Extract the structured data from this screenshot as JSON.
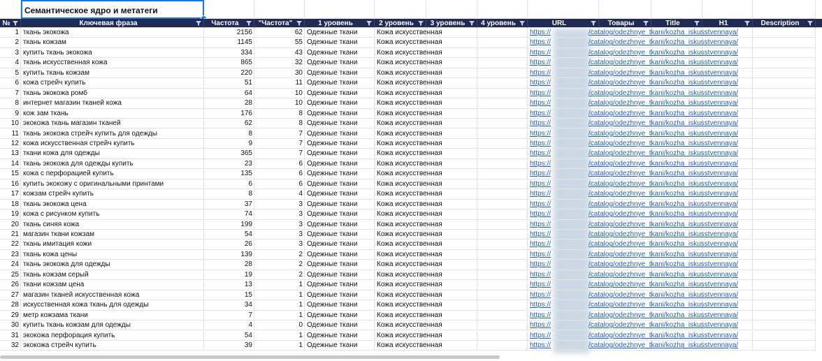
{
  "table": {
    "title": "Семантическое ядро и метатеги",
    "headers": [
      "№",
      "Ключевая фраза",
      "Частота",
      "\"Частота\"",
      "1 уровень",
      "2 уровень",
      "3 уровень",
      "4 уровень",
      "URL",
      "Товары",
      "Title",
      "H1",
      "Description"
    ],
    "rows": [
      [
        1,
        "ткань экокожа",
        2156,
        62,
        "Одежные ткани",
        "Кожа искусственная",
        "https://",
        "/catalog/odezhnye_tkani/kozha_iskusstvennaya/"
      ],
      [
        2,
        "ткань кожзам",
        1145,
        55,
        "Одежные ткани",
        "Кожа искусственная",
        "https://",
        "/catalog/odezhnye_tkani/kozha_iskusstvennaya/"
      ],
      [
        3,
        "купить ткань экокожа",
        334,
        43,
        "Одежные ткани",
        "Кожа искусственная",
        "https://",
        "/catalog/odezhnye_tkani/kozha_iskusstvennaya/"
      ],
      [
        4,
        "ткань искусственная кожа",
        865,
        32,
        "Одежные ткани",
        "Кожа искусственная",
        "https://",
        "/catalog/odezhnye_tkani/kozha_iskusstvennaya/"
      ],
      [
        5,
        "купить ткань кожзам",
        220,
        30,
        "Одежные ткани",
        "Кожа искусственная",
        "https://",
        "/catalog/odezhnye_tkani/kozha_iskusstvennaya/"
      ],
      [
        6,
        "кожа стрейч купить",
        51,
        11,
        "Одежные ткани",
        "Кожа искусственная",
        "https://",
        "/catalog/odezhnye_tkani/kozha_iskusstvennaya/"
      ],
      [
        7,
        "ткань экокожа ромб",
        64,
        10,
        "Одежные ткани",
        "Кожа искусственная",
        "https://",
        "/catalog/odezhnye_tkani/kozha_iskusstvennaya/"
      ],
      [
        8,
        "интернет магазин тканей кожа",
        28,
        10,
        "Одежные ткани",
        "Кожа искусственная",
        "https://",
        "/catalog/odezhnye_tkani/kozha_iskusstvennaya/"
      ],
      [
        9,
        "кож зам ткань",
        176,
        8,
        "Одежные ткани",
        "Кожа искусственная",
        "https://",
        "/catalog/odezhnye_tkani/kozha_iskusstvennaya/"
      ],
      [
        10,
        "экокожа ткань магазин тканей",
        62,
        8,
        "Одежные ткани",
        "Кожа искусственная",
        "https://",
        "/catalog/odezhnye_tkani/kozha_iskusstvennaya/"
      ],
      [
        11,
        "ткань экокожа стрейч купить для одежды",
        8,
        7,
        "Одежные ткани",
        "Кожа искусственная",
        "https://",
        "/catalog/odezhnye_tkani/kozha_iskusstvennaya/"
      ],
      [
        12,
        "кожа искусственная стрейч купить",
        9,
        7,
        "Одежные ткани",
        "Кожа искусственная",
        "https://",
        "/catalog/odezhnye_tkani/kozha_iskusstvennaya/"
      ],
      [
        13,
        "ткани кожа для одежды",
        365,
        7,
        "Одежные ткани",
        "Кожа искусственная",
        "https://",
        "/catalog/odezhnye_tkani/kozha_iskusstvennaya/"
      ],
      [
        14,
        "ткань экокожа для одежды купить",
        23,
        6,
        "Одежные ткани",
        "Кожа искусственная",
        "https://",
        "/catalog/odezhnye_tkani/kozha_iskusstvennaya/"
      ],
      [
        15,
        "кожа с перфорацией купить",
        135,
        6,
        "Одежные ткани",
        "Кожа искусственная",
        "https://",
        "/catalog/odezhnye_tkani/kozha_iskusstvennaya/"
      ],
      [
        16,
        "купить экокожу с оригинальными принтами",
        6,
        6,
        "Одежные ткани",
        "Кожа искусственная",
        "https://",
        "/catalog/odezhnye_tkani/kozha_iskusstvennaya/"
      ],
      [
        17,
        "кожзам стрейч купить",
        8,
        4,
        "Одежные ткани",
        "Кожа искусственная",
        "https://",
        "/catalog/odezhnye_tkani/kozha_iskusstvennaya/"
      ],
      [
        18,
        "ткань экокожа цена",
        37,
        3,
        "Одежные ткани",
        "Кожа искусственная",
        "https://",
        "/catalog/odezhnye_tkani/kozha_iskusstvennaya/"
      ],
      [
        19,
        "кожа с рисунком купить",
        74,
        3,
        "Одежные ткани",
        "Кожа искусственная",
        "https://",
        "/catalog/odezhnye_tkani/kozha_iskusstvennaya/"
      ],
      [
        20,
        "ткань синяя кожа",
        199,
        3,
        "Одежные ткани",
        "Кожа искусственная",
        "https://",
        "/catalog/odezhnye_tkani/kozha_iskusstvennaya/"
      ],
      [
        21,
        "магазин ткани кожзам",
        54,
        3,
        "Одежные ткани",
        "Кожа искусственная",
        "https://",
        "/catalog/odezhnye_tkani/kozha_iskusstvennaya/"
      ],
      [
        22,
        "ткань имитация кожи",
        26,
        3,
        "Одежные ткани",
        "Кожа искусственная",
        "https://",
        "/catalog/odezhnye_tkani/kozha_iskusstvennaya/"
      ],
      [
        23,
        "ткань кожа цены",
        139,
        2,
        "Одежные ткани",
        "Кожа искусственная",
        "https://",
        "/catalog/odezhnye_tkani/kozha_iskusstvennaya/"
      ],
      [
        24,
        "ткань экокожа для одежды",
        28,
        2,
        "Одежные ткани",
        "Кожа искусственная",
        "https://",
        "/catalog/odezhnye_tkani/kozha_iskusstvennaya/"
      ],
      [
        25,
        "ткань кожзам серый",
        19,
        2,
        "Одежные ткани",
        "Кожа искусственная",
        "https://",
        "/catalog/odezhnye_tkani/kozha_iskusstvennaya/"
      ],
      [
        26,
        "ткани кожзам цена",
        13,
        1,
        "Одежные ткани",
        "Кожа искусственная",
        "https://",
        "/catalog/odezhnye_tkani/kozha_iskusstvennaya/"
      ],
      [
        27,
        "магазин тканей искусственная кожа",
        15,
        1,
        "Одежные ткани",
        "Кожа искусственная",
        "https://",
        "/catalog/odezhnye_tkani/kozha_iskusstvennaya/"
      ],
      [
        28,
        "искусственная кожа ткань для одежды",
        34,
        1,
        "Одежные ткани",
        "Кожа искусственная",
        "https://",
        "/catalog/odezhnye_tkani/kozha_iskusstvennaya/"
      ],
      [
        29,
        "метр кожзама ткани",
        7,
        1,
        "Одежные ткани",
        "Кожа искусственная",
        "https://",
        "/catalog/odezhnye_tkani/kozha_iskusstvennaya/"
      ],
      [
        30,
        "купить ткань кожзам для одежды",
        4,
        0,
        "Одежные ткани",
        "Кожа искусственная",
        "https://",
        "/catalog/odezhnye_tkani/kozha_iskusstvennaya/"
      ],
      [
        31,
        "экокожа перфорация купить",
        54,
        1,
        "Одежные ткани",
        "Кожа искусственная",
        "https://",
        "/catalog/odezhnye_tkani/kozha_iskusstvennaya/"
      ],
      [
        32,
        "экокожа стрейч купить",
        39,
        1,
        "Одежные ткани",
        "Кожа искусственная",
        "https://",
        "/catalog/odezhnye_tkani/kozha_iskusstvennaya/"
      ]
    ]
  }
}
